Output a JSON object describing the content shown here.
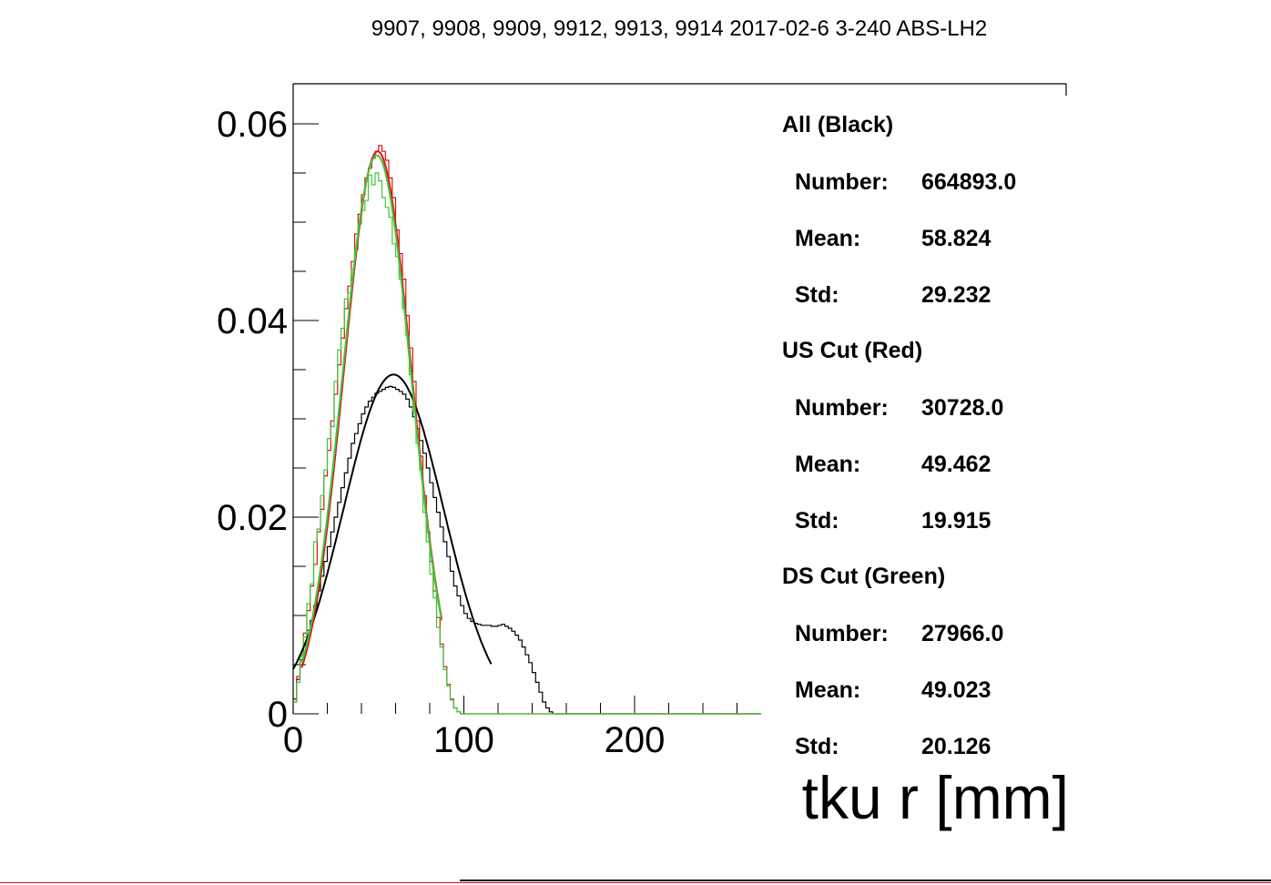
{
  "chart_data": {
    "type": "line",
    "title": "9907, 9908, 9909, 9912, 9913, 9914 2017-02-6 3-240 ABS-LH2",
    "xlabel": "tku r [mm]",
    "ylabel": "",
    "xlim": [
      0,
      275
    ],
    "ylim": [
      0,
      0.064
    ],
    "x_ticks": [
      0,
      100,
      200
    ],
    "y_ticks": [
      0,
      0.02,
      0.04,
      0.06
    ],
    "x_tick_labels": [
      "0",
      "100",
      "200"
    ],
    "y_tick_labels": [
      "0",
      "0.02",
      "0.04",
      "0.06"
    ],
    "grid": false,
    "legend": "right",
    "series": [
      {
        "name": "All (Black)",
        "kind": "histogram",
        "color": "#000000",
        "bin_width": 2,
        "x_start": 0,
        "values": [
          0.0015,
          0.0035,
          0.0055,
          0.007,
          0.0085,
          0.0095,
          0.011,
          0.0125,
          0.014,
          0.0155,
          0.017,
          0.0185,
          0.02,
          0.0215,
          0.023,
          0.0245,
          0.026,
          0.0275,
          0.0285,
          0.0295,
          0.0305,
          0.0312,
          0.0318,
          0.0322,
          0.0326,
          0.0328,
          0.033,
          0.0332,
          0.0333,
          0.0332,
          0.033,
          0.0328,
          0.0325,
          0.032,
          0.0312,
          0.0302,
          0.029,
          0.0278,
          0.0265,
          0.025,
          0.0235,
          0.022,
          0.0205,
          0.019,
          0.0175,
          0.016,
          0.0145,
          0.013,
          0.012,
          0.011,
          0.0102,
          0.0097,
          0.0094,
          0.0092,
          0.0091,
          0.009,
          0.009,
          0.009,
          0.0089,
          0.0089,
          0.009,
          0.0091,
          0.0089,
          0.0087,
          0.0084,
          0.008,
          0.0075,
          0.0068,
          0.006,
          0.0052,
          0.0042,
          0.0032,
          0.0022,
          0.0012,
          0.0006,
          0.0002,
          0,
          0,
          0,
          0,
          0,
          0,
          0,
          0,
          0,
          0,
          0,
          0,
          0,
          0,
          0,
          0,
          0,
          0,
          0,
          0,
          0,
          0,
          0,
          0,
          0,
          0,
          0,
          0,
          0,
          0,
          0,
          0,
          0,
          0,
          0,
          0,
          0,
          0,
          0,
          0,
          0,
          0,
          0,
          0,
          0,
          0,
          0,
          0,
          0,
          0,
          0,
          0,
          0,
          0,
          0,
          0,
          0,
          0,
          0,
          0,
          0,
          0,
          0,
          0,
          0,
          0,
          0,
          0,
          0,
          0,
          0,
          0
        ]
      },
      {
        "name": "US Cut (Red)",
        "kind": "histogram",
        "color": "#e01010",
        "bin_width": 2,
        "x_start": 0,
        "values": [
          0.0012,
          0.0038,
          0.006,
          0.0082,
          0.0105,
          0.013,
          0.0152,
          0.0185,
          0.0208,
          0.0242,
          0.0268,
          0.0298,
          0.0325,
          0.0355,
          0.0382,
          0.0412,
          0.0435,
          0.046,
          0.0488,
          0.0508,
          0.0528,
          0.0545,
          0.0555,
          0.0565,
          0.0572,
          0.0578,
          0.0572,
          0.0563,
          0.0545,
          0.0525,
          0.0492,
          0.0468,
          0.0442,
          0.0405,
          0.0372,
          0.0338,
          0.0298,
          0.0262,
          0.0222,
          0.0185,
          0.0155,
          0.0125,
          0.0098,
          0.0071,
          0.0048,
          0.003,
          0.0015,
          0.0006,
          0.0002,
          0,
          0,
          0,
          0,
          0,
          0,
          0,
          0,
          0,
          0,
          0,
          0,
          0,
          0,
          0,
          0,
          0,
          0,
          0,
          0,
          0,
          0,
          0,
          0,
          0,
          0,
          0,
          0,
          0,
          0,
          0,
          0,
          0,
          0,
          0,
          0,
          0,
          0,
          0,
          0,
          0,
          0,
          0,
          0,
          0,
          0,
          0,
          0,
          0,
          0,
          0,
          0,
          0,
          0,
          0,
          0,
          0,
          0,
          0,
          0,
          0,
          0,
          0,
          0,
          0,
          0,
          0,
          0,
          0,
          0,
          0,
          0,
          0,
          0,
          0,
          0,
          0,
          0,
          0,
          0,
          0,
          0,
          0,
          0,
          0,
          0,
          0,
          0,
          0,
          0,
          0
        ]
      },
      {
        "name": "DS Cut (Green)",
        "kind": "histogram",
        "color": "#3cc83c",
        "bin_width": 2,
        "x_start": 0,
        "values": [
          0.0012,
          0.0032,
          0.0058,
          0.0078,
          0.0112,
          0.0132,
          0.0175,
          0.0188,
          0.0222,
          0.0248,
          0.028,
          0.0292,
          0.0338,
          0.037,
          0.0392,
          0.0422,
          0.0428,
          0.0452,
          0.0472,
          0.0498,
          0.0512,
          0.0522,
          0.0548,
          0.0538,
          0.055,
          0.0542,
          0.0525,
          0.0515,
          0.0505,
          0.0478,
          0.0465,
          0.0442,
          0.0412,
          0.0385,
          0.0345,
          0.0308,
          0.0275,
          0.0248,
          0.0205,
          0.0175,
          0.0142,
          0.0118,
          0.0088,
          0.0068,
          0.0045,
          0.0028,
          0.0014,
          0.0006,
          0.0002,
          0,
          0,
          0,
          0,
          0,
          0,
          0,
          0,
          0,
          0,
          0,
          0,
          0,
          0,
          0,
          0,
          0,
          0,
          0,
          0,
          0,
          0,
          0,
          0,
          0,
          0,
          0,
          0,
          0,
          0,
          0,
          0,
          0,
          0,
          0,
          0,
          0,
          0,
          0,
          0,
          0,
          0,
          0,
          0,
          0,
          0,
          0,
          0,
          0,
          0,
          0,
          0,
          0,
          0,
          0,
          0,
          0,
          0,
          0,
          0,
          0,
          0,
          0,
          0,
          0,
          0,
          0,
          0,
          0,
          0,
          0,
          0,
          0,
          0,
          0,
          0,
          0,
          0,
          0,
          0,
          0,
          0,
          0,
          0,
          0,
          0,
          0,
          0,
          0,
          0,
          0
        ]
      }
    ],
    "fits": [
      {
        "name": "All fit",
        "color": "#000000",
        "amplitude": 0.0345,
        "mean": 58.8,
        "sigma": 29.2,
        "x_range": [
          0,
          116
        ]
      },
      {
        "name": "US Cut fit",
        "color": "#e01010",
        "amplitude": 0.0572,
        "mean": 49.5,
        "sigma": 19.9,
        "x_range": [
          5,
          87
        ]
      },
      {
        "name": "DS Cut fit",
        "color": "#3cc83c",
        "amplitude": 0.0568,
        "mean": 49.0,
        "sigma": 20.1,
        "x_range": [
          5,
          87
        ]
      }
    ],
    "stats": [
      {
        "header": "All (Black)",
        "rows": [
          {
            "label": "Number:",
            "value": "664893.0"
          },
          {
            "label": "Mean:",
            "value": "58.824"
          },
          {
            "label": "Std:",
            "value": "29.232"
          }
        ]
      },
      {
        "header": "US Cut (Red)",
        "rows": [
          {
            "label": "Number:",
            "value": "30728.0"
          },
          {
            "label": "Mean:",
            "value": "49.462"
          },
          {
            "label": "Std:",
            "value": "19.915"
          }
        ]
      },
      {
        "header": "DS Cut (Green)",
        "rows": [
          {
            "label": "Number:",
            "value": "27966.0"
          },
          {
            "label": "Mean:",
            "value": "49.023"
          },
          {
            "label": "Std:",
            "value": "20.126"
          }
        ]
      }
    ]
  }
}
